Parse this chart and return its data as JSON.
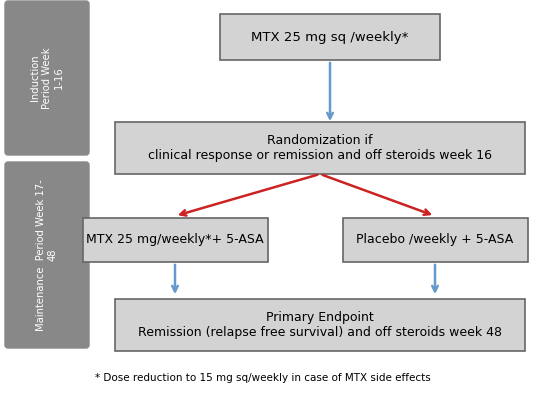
{
  "bg_color": "#ffffff",
  "box_color": "#d3d3d3",
  "box_edge_color": "#666666",
  "sidebar_color": "#888888",
  "arrow_blue": "#6699cc",
  "arrow_red": "#cc2222",
  "box1_text": "MTX 25 mg sq /weekly*",
  "box2_text": "Randomization if\nclinical response or remission and off steroids week 16",
  "box3_text": "MTX 25 mg/weekly*+ 5-ASA",
  "box4_text": "Placebo /weekly + 5-ASA",
  "box5_text": "Primary Endpoint\nRemission (relapse free survival) and off steroids week 48",
  "sidebar1_text": "Induction\nPeriod Week\n1-16",
  "sidebar2_text": "Maintenance  Period Week 17-\n48",
  "footnote": "* Dose reduction to 15 mg sq/weekly in case of MTX side effects",
  "font_family": "DejaVu Sans"
}
